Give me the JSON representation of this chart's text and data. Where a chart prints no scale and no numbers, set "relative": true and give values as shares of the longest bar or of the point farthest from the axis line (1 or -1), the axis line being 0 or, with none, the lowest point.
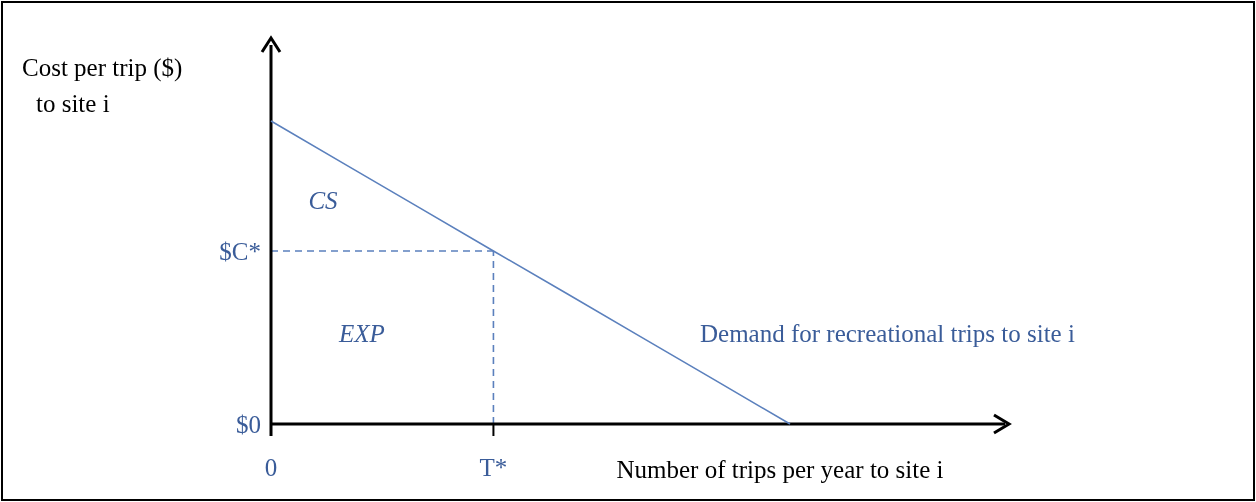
{
  "chart_data": {
    "type": "line",
    "relative": true,
    "xlabel": "Number of trips per year to site i",
    "ylabel": "Cost per trip ($)\nto site i",
    "categories": [
      "0",
      null,
      null,
      "T*",
      null,
      null,
      null,
      null,
      null,
      null
    ],
    "series": [
      {
        "name": "Demand for recreational trips to site i",
        "color": "#5b80bd",
        "values": [
          1,
          0.857,
          0.714,
          0.571,
          0.429,
          0.286,
          0.143,
          0,
          null,
          null
        ]
      }
    ],
    "ref_lines": [
      {
        "axis": "y",
        "value": 0.571,
        "label": "$C*",
        "color": "#5b80bd",
        "line_style": "dashed"
      },
      {
        "axis": "x",
        "value": "T*",
        "label": null,
        "color": "#5b80bd",
        "line_style": "dashed"
      }
    ],
    "annotations": [
      "$0",
      "CS",
      "EXP"
    ]
  }
}
